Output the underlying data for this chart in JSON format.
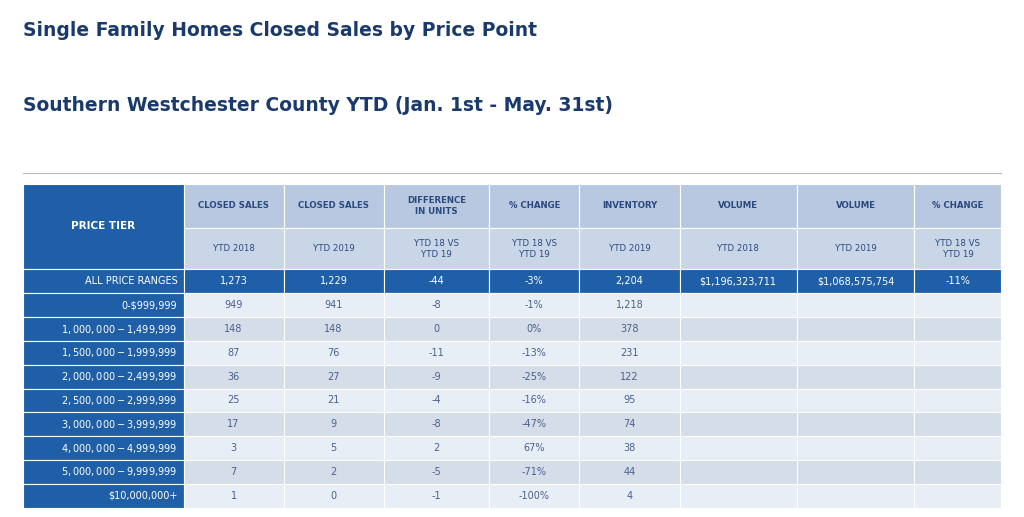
{
  "title_line1": "Single Family Homes Closed Sales by Price Point",
  "title_line2": "Southern Westchester County YTD (Jan. 1st - May. 31st)",
  "title_color": "#1a3a6b",
  "background_color": "#ffffff",
  "col_headers_top": [
    "CLOSED SALES",
    "CLOSED SALES",
    "DIFFERENCE\nIN UNITS",
    "% CHANGE",
    "INVENTORY",
    "VOLUME",
    "VOLUME",
    "% CHANGE"
  ],
  "col_headers_bot": [
    "YTD 2018",
    "YTD 2019",
    "YTD 18 VS\nYTD 19",
    "YTD 18 VS\nYTD 19",
    "YTD 2019",
    "YTD 2018",
    "YTD 2019",
    "YTD 18 VS\nYTD 19"
  ],
  "price_tier_label": "PRICE TIER",
  "header_bg_top": "#b8c8e0",
  "header_bg_bot": "#c8d6e8",
  "header_text": "#2a4a7f",
  "tier_col_bg": "#1e5fa8",
  "tier_col_text": "#ffffff",
  "all_price_bg": "#1e5fa8",
  "all_price_text": "#ffffff",
  "row_light": "#e8eef5",
  "row_dark": "#d4dde8",
  "row_text": "#4a6090",
  "rows": [
    {
      "tier": "ALL PRICE RANGES",
      "values": [
        "1,273",
        "1,229",
        "-44",
        "-3%",
        "2,204",
        "$1,196,323,711",
        "$1,068,575,754",
        "-11%"
      ],
      "style": "all_price"
    },
    {
      "tier": "0-$999,999",
      "values": [
        "949",
        "941",
        "-8",
        "-1%",
        "1,218",
        "",
        "",
        ""
      ],
      "style": "light"
    },
    {
      "tier": "$1,000,000 - $1,499,999",
      "values": [
        "148",
        "148",
        "0",
        "0%",
        "378",
        "",
        "",
        ""
      ],
      "style": "dark"
    },
    {
      "tier": "$1,500,000 - $1,999,999",
      "values": [
        "87",
        "76",
        "-11",
        "-13%",
        "231",
        "",
        "",
        ""
      ],
      "style": "light"
    },
    {
      "tier": "$2,000,000 - $2,499,999",
      "values": [
        "36",
        "27",
        "-9",
        "-25%",
        "122",
        "",
        "",
        ""
      ],
      "style": "dark"
    },
    {
      "tier": "$2,500,000 - $2,999,999",
      "values": [
        "25",
        "21",
        "-4",
        "-16%",
        "95",
        "",
        "",
        ""
      ],
      "style": "light"
    },
    {
      "tier": "$3,000,000 - $3,999,999",
      "values": [
        "17",
        "9",
        "-8",
        "-47%",
        "74",
        "",
        "",
        ""
      ],
      "style": "dark"
    },
    {
      "tier": "$4,000,000 - $4,999,999",
      "values": [
        "3",
        "5",
        "2",
        "67%",
        "38",
        "",
        "",
        ""
      ],
      "style": "light"
    },
    {
      "tier": "$5,000,000 - $9,999,999",
      "values": [
        "7",
        "2",
        "-5",
        "-71%",
        "44",
        "",
        "",
        ""
      ],
      "style": "dark"
    },
    {
      "tier": "$10,000,000+",
      "values": [
        "1",
        "0",
        "-1",
        "-100%",
        "4",
        "",
        "",
        ""
      ],
      "style": "light"
    }
  ]
}
